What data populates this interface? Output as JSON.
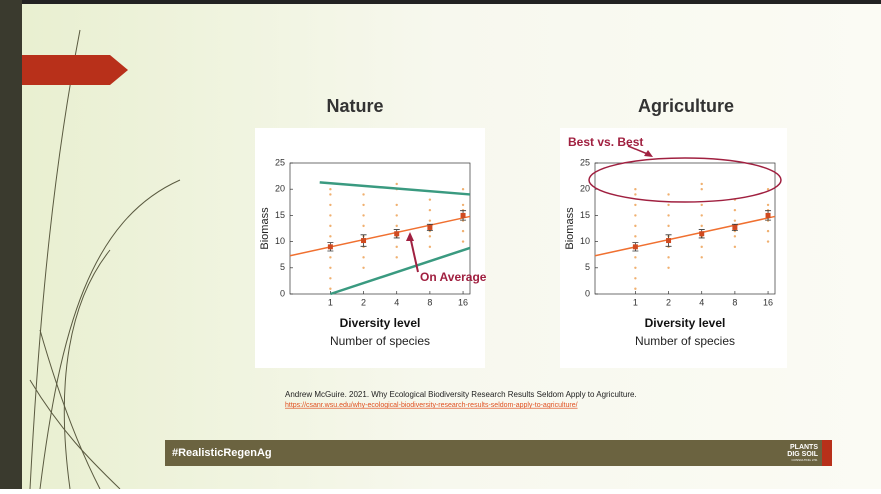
{
  "slide": {
    "title_left": "Nature",
    "title_right": "Agriculture",
    "citation": "Andrew McGuire. 2021. Why Ecological Biodiversity Research Results Seldom Apply to Agriculture.",
    "url": "https://csanr.wsu.edu/why-ecological-biodiversity-research-results-seldom-apply-to-agriculture/",
    "footer": "#RealisticRegenAg",
    "logo": [
      "PLANTS",
      "DIG SOIL",
      "CONSULTING LTD."
    ]
  },
  "chart_data": [
    {
      "type": "scatter",
      "y_label": "Biomass",
      "x_label": "Diversity level",
      "x_sublabel": "Number of species",
      "xscale": "log",
      "xlim": [
        0.43,
        18.5
      ],
      "ylim": [
        0,
        25
      ],
      "xticks": [
        1,
        2,
        4,
        8,
        16
      ],
      "yticks": [
        0,
        5,
        10,
        15,
        20,
        25
      ],
      "point_color": "#f0b070",
      "fit_color": "#f07030",
      "mean_color": "#d04a20",
      "points": {
        "x": [
          1,
          1,
          1,
          1,
          1,
          1,
          1,
          1,
          1,
          1,
          1,
          2,
          2,
          2,
          2,
          2,
          2,
          2,
          2,
          4,
          4,
          4,
          4,
          4,
          4,
          4,
          4,
          8,
          8,
          8,
          8,
          8,
          8,
          8,
          16,
          16,
          16,
          16,
          16,
          16
        ],
        "y": [
          1,
          3,
          5,
          7,
          9,
          11,
          13,
          15,
          17,
          19,
          20,
          5,
          7,
          9,
          11,
          13,
          15,
          17,
          19,
          7,
          9,
          11,
          13,
          15,
          17,
          20,
          21,
          9,
          11,
          12,
          13,
          14,
          16,
          18,
          10,
          12,
          14,
          16,
          17,
          20
        ]
      },
      "means": {
        "x": [
          1,
          2,
          4,
          8,
          16
        ],
        "y": [
          9,
          10.2,
          11.5,
          12.7,
          15
        ],
        "err": [
          0.8,
          1.1,
          0.8,
          0.6,
          0.9
        ]
      },
      "fit": {
        "x": [
          0.43,
          18.5
        ],
        "y": [
          7.3,
          14.8
        ]
      },
      "bounds": {
        "color": "#3a9a80",
        "upper": {
          "x": [
            0.8,
            18.5
          ],
          "y": [
            21.3,
            19
          ]
        },
        "lower": {
          "x": [
            1,
            18.5
          ],
          "y": [
            0,
            8.8
          ]
        }
      },
      "annotation": "On Average"
    },
    {
      "type": "scatter",
      "y_label": "Biomass",
      "x_label": "Diversity level",
      "x_sublabel": "Number of species",
      "xscale": "log",
      "xlim": [
        0.43,
        18.5
      ],
      "ylim": [
        0,
        25
      ],
      "xticks": [
        1,
        2,
        4,
        8,
        16
      ],
      "yticks": [
        0,
        5,
        10,
        15,
        20,
        25
      ],
      "point_color": "#f0b070",
      "fit_color": "#f07030",
      "mean_color": "#d04a20",
      "points": {
        "x": [
          1,
          1,
          1,
          1,
          1,
          1,
          1,
          1,
          1,
          1,
          1,
          2,
          2,
          2,
          2,
          2,
          2,
          2,
          2,
          4,
          4,
          4,
          4,
          4,
          4,
          4,
          4,
          8,
          8,
          8,
          8,
          8,
          8,
          8,
          16,
          16,
          16,
          16,
          16,
          16
        ],
        "y": [
          1,
          3,
          5,
          7,
          9,
          11,
          13,
          15,
          17,
          19,
          20,
          5,
          7,
          9,
          11,
          13,
          15,
          17,
          19,
          7,
          9,
          11,
          13,
          15,
          17,
          20,
          21,
          9,
          11,
          12,
          13,
          14,
          16,
          18,
          10,
          12,
          14,
          16,
          17,
          20
        ]
      },
      "means": {
        "x": [
          1,
          2,
          4,
          8,
          16
        ],
        "y": [
          9,
          10.2,
          11.5,
          12.7,
          15
        ],
        "err": [
          0.8,
          1.1,
          0.8,
          0.6,
          0.9
        ]
      },
      "fit": {
        "x": [
          0.43,
          18.5
        ],
        "y": [
          7.3,
          14.8
        ]
      },
      "annotation": "Best vs. Best"
    }
  ]
}
